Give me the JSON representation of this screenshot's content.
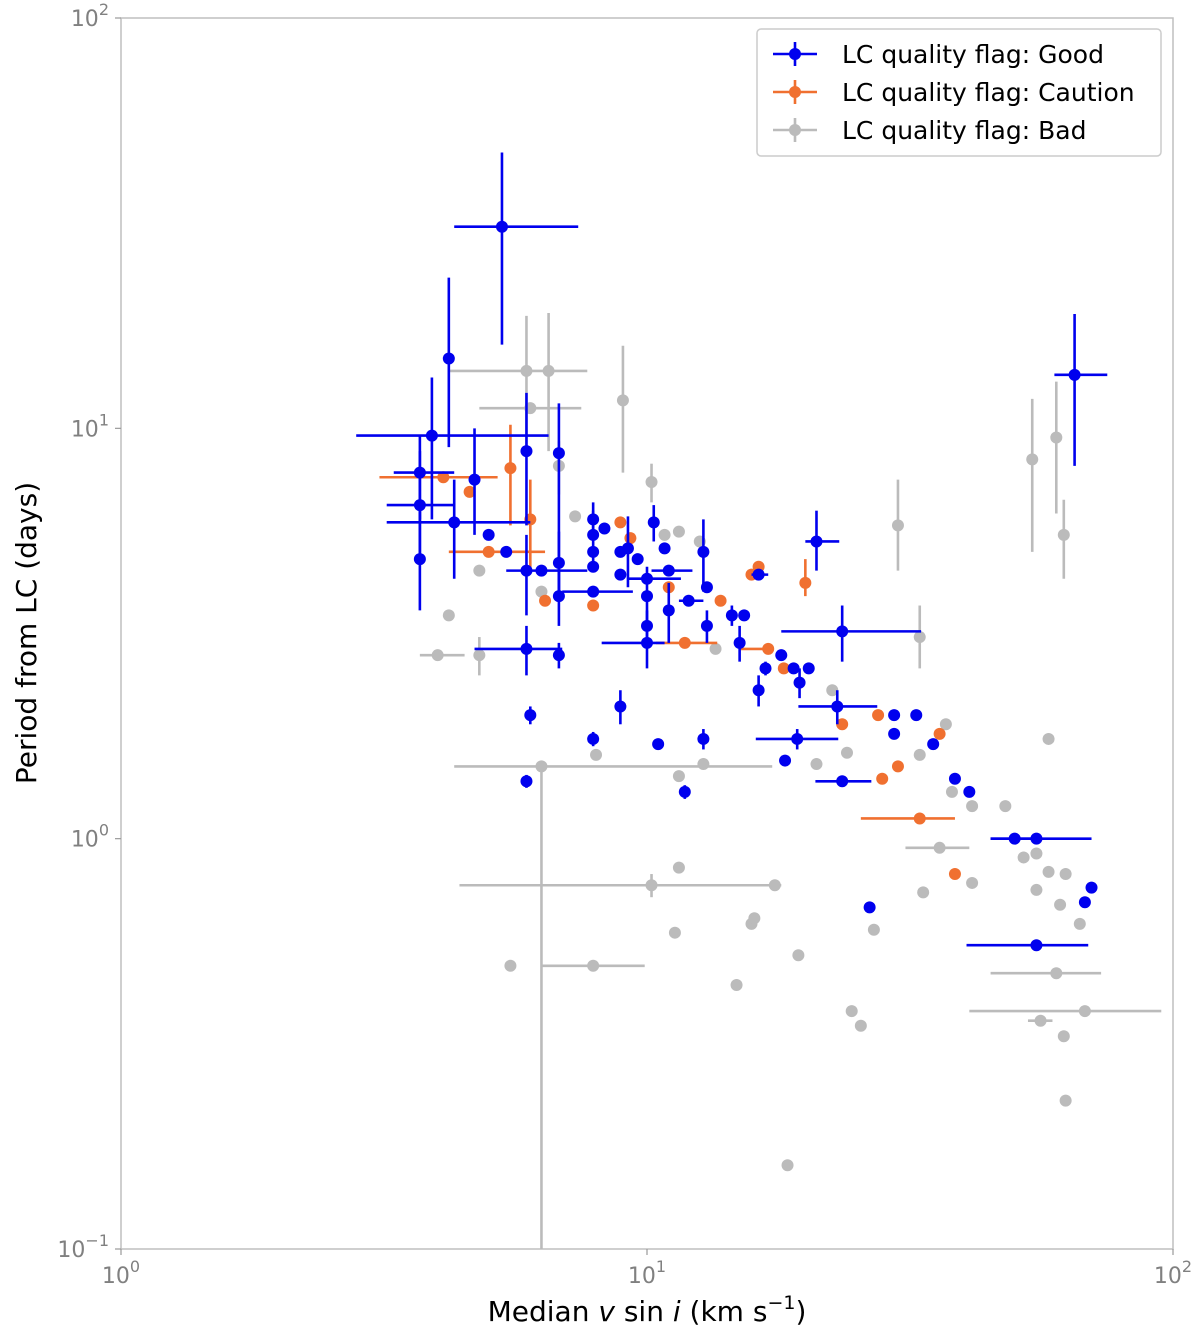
{
  "chart_data": {
    "type": "scatter",
    "xlabel": "Median v sin i (km s−1)",
    "xlabel_parts": {
      "pre": "Median ",
      "v": "v",
      "sin": " sin ",
      "i": "i",
      "unit": " (km s",
      "exp": "−1",
      "close": ")"
    },
    "ylabel": "Period from LC (days)",
    "xscale": "log",
    "yscale": "log",
    "xlim": [
      1,
      100
    ],
    "ylim": [
      0.1,
      100
    ],
    "xticks": [
      {
        "value": 1,
        "base": "10",
        "exp": "0"
      },
      {
        "value": 10,
        "base": "10",
        "exp": "1"
      },
      {
        "value": 100,
        "base": "10",
        "exp": "2"
      }
    ],
    "yticks": [
      {
        "value": 0.1,
        "base": "10",
        "exp": "−1"
      },
      {
        "value": 1,
        "base": "10",
        "exp": "0"
      },
      {
        "value": 10,
        "base": "10",
        "exp": "1"
      },
      {
        "value": 100,
        "base": "10",
        "exp": "2"
      }
    ],
    "grid": false,
    "legend_position": "top-right",
    "series": [
      {
        "name": "LC quality flag: Good",
        "color": "#0000ee",
        "points": [
          {
            "x": 5.3,
            "y": 31,
            "xerr": [
              1.0,
              2.1
            ],
            "yerr": [
              15,
              16
            ]
          },
          {
            "x": 4.2,
            "y": 14.8,
            "yerr": [
              5.8,
              8.5
            ]
          },
          {
            "x": 3.9,
            "y": 9.6,
            "xerr": [
              1.1,
              2.6
            ],
            "yerr": [
              3.6,
              3.7
            ]
          },
          {
            "x": 3.7,
            "y": 7.8,
            "xerr": [
              0.4,
              0.6
            ],
            "yerr": [
              1.8,
              1.8
            ]
          },
          {
            "x": 3.7,
            "y": 6.5,
            "xerr": [
              0.5,
              0.6
            ],
            "yerr": [
              1.7,
              2.3
            ]
          },
          {
            "x": 4.7,
            "y": 7.5,
            "yerr": [
              2.0,
              2.5
            ]
          },
          {
            "x": 4.3,
            "y": 5.9,
            "xerr": [
              1.1,
              1.7
            ],
            "yerr": [
              1.6,
              1.6
            ]
          },
          {
            "x": 3.7,
            "y": 4.8,
            "yerr": [
              1.2,
              1.6
            ]
          },
          {
            "x": 5.0,
            "y": 5.5
          },
          {
            "x": 5.4,
            "y": 5.0
          },
          {
            "x": 5.9,
            "y": 8.8,
            "yerr": [
              3.0,
              3.4
            ]
          },
          {
            "x": 6.8,
            "y": 8.7,
            "yerr": [
              4.8,
              2.8
            ]
          },
          {
            "x": 5.9,
            "y": 4.5,
            "yerr": [
              1.0,
              1.0
            ]
          },
          {
            "x": 6.3,
            "y": 4.5,
            "xerr": [
              0.9,
              1.4
            ]
          },
          {
            "x": 6.8,
            "y": 4.7,
            "yerr": [
              0.9,
              0.9
            ]
          },
          {
            "x": 6.8,
            "y": 3.9,
            "yerr": [
              0.6,
              0.7
            ]
          },
          {
            "x": 5.9,
            "y": 2.9,
            "xerr": [
              1.2,
              1.0
            ],
            "yerr": [
              0.4,
              0.4
            ]
          },
          {
            "x": 6.8,
            "y": 2.8,
            "yerr": [
              0.2,
              0.2
            ]
          },
          {
            "x": 6.0,
            "y": 2.0,
            "yerr": [
              0.1,
              0.1
            ]
          },
          {
            "x": 5.9,
            "y": 1.38,
            "yerr": [
              0.05,
              0.05
            ]
          },
          {
            "x": 7.9,
            "y": 6.0,
            "yerr": [
              0.6,
              0.6
            ]
          },
          {
            "x": 7.9,
            "y": 5.5,
            "yerr": [
              0.8,
              0.8
            ]
          },
          {
            "x": 7.9,
            "y": 5.0
          },
          {
            "x": 8.3,
            "y": 5.7
          },
          {
            "x": 8.9,
            "y": 5.0
          },
          {
            "x": 9.2,
            "y": 5.1,
            "yerr": [
              1.0,
              1.0
            ]
          },
          {
            "x": 10.3,
            "y": 5.9,
            "yerr": [
              0.6,
              0.6
            ]
          },
          {
            "x": 10.8,
            "y": 5.1
          },
          {
            "x": 7.9,
            "y": 4.6
          },
          {
            "x": 7.9,
            "y": 4.0,
            "xerr": [
              1.0,
              1.5
            ]
          },
          {
            "x": 8.9,
            "y": 4.4
          },
          {
            "x": 9.6,
            "y": 4.8
          },
          {
            "x": 10.0,
            "y": 4.3,
            "xerr": [
              0.8,
              1.6
            ]
          },
          {
            "x": 10.0,
            "y": 3.9,
            "yerr": [
              0.7,
              0.7
            ]
          },
          {
            "x": 10.0,
            "y": 3.3,
            "yerr": [
              0.3,
              0.3
            ]
          },
          {
            "x": 10.0,
            "y": 3.0,
            "xerr": [
              1.8,
              0.8
            ],
            "yerr": [
              0.4,
              0.4
            ]
          },
          {
            "x": 11.0,
            "y": 3.6,
            "yerr": [
              0.6,
              0.6
            ]
          },
          {
            "x": 11.0,
            "y": 4.5,
            "xerr": [
              0.8,
              1.2
            ]
          },
          {
            "x": 10.5,
            "y": 1.7,
            "yerr": [
              0.05,
              0.05
            ]
          },
          {
            "x": 8.9,
            "y": 2.1,
            "yerr": [
              0.2,
              0.2
            ]
          },
          {
            "x": 7.9,
            "y": 1.75,
            "yerr": [
              0.07,
              0.07
            ]
          },
          {
            "x": 11.8,
            "y": 1.3,
            "yerr": [
              0.05,
              0.05
            ]
          },
          {
            "x": 12.8,
            "y": 1.75,
            "yerr": [
              0.1,
              0.1
            ]
          },
          {
            "x": 12.8,
            "y": 5.0,
            "yerr": [
              1.0,
              1.0
            ]
          },
          {
            "x": 12.0,
            "y": 3.8,
            "xerr": [
              0.5,
              0.8
            ]
          },
          {
            "x": 13.0,
            "y": 4.1
          },
          {
            "x": 13.0,
            "y": 3.3,
            "yerr": [
              0.3,
              0.3
            ]
          },
          {
            "x": 14.5,
            "y": 3.5,
            "yerr": [
              0.2,
              0.2
            ]
          },
          {
            "x": 15.3,
            "y": 3.5
          },
          {
            "x": 15.0,
            "y": 3.0,
            "yerr": [
              0.3,
              0.3
            ]
          },
          {
            "x": 16.3,
            "y": 4.4,
            "xerr": [
              0.5,
              0.7
            ]
          },
          {
            "x": 16.8,
            "y": 2.6,
            "yerr": [
              0.1,
              0.1
            ]
          },
          {
            "x": 16.3,
            "y": 2.3,
            "yerr": [
              0.2,
              0.2
            ]
          },
          {
            "x": 18.0,
            "y": 2.8
          },
          {
            "x": 19.0,
            "y": 2.6
          },
          {
            "x": 19.5,
            "y": 2.4,
            "yerr": [
              0.2,
              0.2
            ]
          },
          {
            "x": 20.3,
            "y": 2.6
          },
          {
            "x": 21.0,
            "y": 5.3,
            "xerr": [
              1.0,
              2.2
            ],
            "yerr": [
              0.8,
              1.0
            ]
          },
          {
            "x": 23.5,
            "y": 3.2,
            "xerr": [
              5.5,
              9.7
            ],
            "yerr": [
              0.5,
              0.5
            ]
          },
          {
            "x": 23.0,
            "y": 2.1,
            "xerr": [
              3.6,
              4.4
            ],
            "yerr": [
              0.2,
              0.2
            ]
          },
          {
            "x": 19.3,
            "y": 1.75,
            "xerr": [
              3.2,
              3.8
            ],
            "yerr": [
              0.1,
              0.1
            ]
          },
          {
            "x": 18.3,
            "y": 1.55
          },
          {
            "x": 23.5,
            "y": 1.38,
            "xerr": [
              2.6,
              3.2
            ]
          },
          {
            "x": 29.5,
            "y": 2.0
          },
          {
            "x": 32.5,
            "y": 2.0
          },
          {
            "x": 29.5,
            "y": 1.8
          },
          {
            "x": 35.0,
            "y": 1.7
          },
          {
            "x": 38.5,
            "y": 1.4
          },
          {
            "x": 41.0,
            "y": 1.3
          },
          {
            "x": 50.0,
            "y": 1.0,
            "xerr": [
              5.0,
              6.0
            ]
          },
          {
            "x": 55.0,
            "y": 1.0,
            "xerr": [
              10.0,
              15.0
            ]
          },
          {
            "x": 26.5,
            "y": 0.68
          },
          {
            "x": 55.0,
            "y": 0.55,
            "xerr": [
              14.5,
              14.0
            ]
          },
          {
            "x": 65.0,
            "y": 13.5,
            "xerr": [
              5.5,
              10.0
            ],
            "yerr": [
              5.4,
              5.5
            ]
          },
          {
            "x": 68.0,
            "y": 0.7
          },
          {
            "x": 70.0,
            "y": 0.76
          }
        ]
      },
      {
        "name": "LC quality flag: Caution",
        "color": "#f07030",
        "points": [
          {
            "x": 4.1,
            "y": 7.6,
            "xerr": [
              1.0,
              1.1
            ]
          },
          {
            "x": 4.6,
            "y": 7.0
          },
          {
            "x": 5.0,
            "y": 5.0,
            "xerr": [
              0.8,
              1.4
            ]
          },
          {
            "x": 5.5,
            "y": 8.0,
            "yerr": [
              2.2,
              2.2
            ]
          },
          {
            "x": 6.0,
            "y": 6.0,
            "yerr": [
              1.5,
              1.5
            ]
          },
          {
            "x": 6.4,
            "y": 3.8
          },
          {
            "x": 7.9,
            "y": 3.7
          },
          {
            "x": 8.9,
            "y": 5.9
          },
          {
            "x": 9.3,
            "y": 5.4
          },
          {
            "x": 11.0,
            "y": 4.1
          },
          {
            "x": 11.8,
            "y": 3.0,
            "xerr": [
              1.4,
              1.8
            ]
          },
          {
            "x": 13.8,
            "y": 3.8
          },
          {
            "x": 15.8,
            "y": 4.4
          },
          {
            "x": 16.3,
            "y": 4.6
          },
          {
            "x": 17.0,
            "y": 2.9,
            "xerr": [
              2.0,
              0.0
            ]
          },
          {
            "x": 18.2,
            "y": 2.6
          },
          {
            "x": 20.0,
            "y": 4.2,
            "yerr": [
              0.3,
              0.6
            ]
          },
          {
            "x": 23.5,
            "y": 1.9
          },
          {
            "x": 27.5,
            "y": 2.0
          },
          {
            "x": 28.0,
            "y": 1.4
          },
          {
            "x": 30.0,
            "y": 1.5
          },
          {
            "x": 33.0,
            "y": 1.12,
            "xerr": [
              7.5,
              5.5
            ]
          },
          {
            "x": 36.0,
            "y": 1.8
          },
          {
            "x": 38.5,
            "y": 0.82
          }
        ]
      },
      {
        "name": "LC quality flag: Bad",
        "color": "#bbbbbb",
        "points": [
          {
            "x": 5.9,
            "y": 13.8,
            "xerr": [
              1.7,
              1.8
            ],
            "yerr": [
              5.2,
              5.0
            ]
          },
          {
            "x": 6.5,
            "y": 13.8,
            "yerr": [
              5.0,
              5.3
            ]
          },
          {
            "x": 6.0,
            "y": 11.2,
            "xerr": [
              1.2,
              1.5
            ]
          },
          {
            "x": 6.8,
            "y": 8.1,
            "yerr": [
              1.2,
              1.2
            ]
          },
          {
            "x": 9.0,
            "y": 11.7,
            "yerr": [
              3.9,
              4.2
            ]
          },
          {
            "x": 10.2,
            "y": 7.4,
            "yerr": [
              0.8,
              0.8
            ]
          },
          {
            "x": 7.3,
            "y": 6.1
          },
          {
            "x": 10.8,
            "y": 5.5
          },
          {
            "x": 11.5,
            "y": 5.6
          },
          {
            "x": 12.6,
            "y": 5.3
          },
          {
            "x": 4.2,
            "y": 3.5
          },
          {
            "x": 4.0,
            "y": 2.8,
            "xerr": [
              0.3,
              0.5
            ]
          },
          {
            "x": 4.8,
            "y": 2.8,
            "yerr": [
              0.3,
              0.3
            ]
          },
          {
            "x": 4.8,
            "y": 4.5
          },
          {
            "x": 6.3,
            "y": 4.0
          },
          {
            "x": 6.3,
            "y": 1.5,
            "xerr": [
              2.0,
              11.0
            ],
            "yerr": [
              1.4,
              0.0
            ]
          },
          {
            "x": 8.0,
            "y": 1.6
          },
          {
            "x": 10.2,
            "y": 0.77,
            "xerr": [
              5.8,
              7.8
            ],
            "yerr": [
              0.05,
              0.05
            ]
          },
          {
            "x": 11.5,
            "y": 1.42
          },
          {
            "x": 12.8,
            "y": 1.52
          },
          {
            "x": 11.5,
            "y": 0.85
          },
          {
            "x": 13.5,
            "y": 2.9
          },
          {
            "x": 15.8,
            "y": 0.62
          },
          {
            "x": 16.0,
            "y": 0.64
          },
          {
            "x": 17.5,
            "y": 0.77
          },
          {
            "x": 11.3,
            "y": 0.59
          },
          {
            "x": 14.8,
            "y": 0.44
          },
          {
            "x": 19.4,
            "y": 0.52
          },
          {
            "x": 21.0,
            "y": 1.52
          },
          {
            "x": 24.0,
            "y": 1.62
          },
          {
            "x": 22.5,
            "y": 2.3
          },
          {
            "x": 24.5,
            "y": 0.38
          },
          {
            "x": 25.5,
            "y": 0.35
          },
          {
            "x": 27.0,
            "y": 0.6
          },
          {
            "x": 30.0,
            "y": 5.8,
            "yerr": [
              1.3,
              1.7
            ]
          },
          {
            "x": 33.0,
            "y": 3.1,
            "yerr": [
              0.5,
              0.6
            ]
          },
          {
            "x": 33.0,
            "y": 1.6
          },
          {
            "x": 36.0,
            "y": 0.95,
            "xerr": [
              5.0,
              5.0
            ]
          },
          {
            "x": 37.0,
            "y": 1.9
          },
          {
            "x": 38.0,
            "y": 1.3
          },
          {
            "x": 33.5,
            "y": 0.74
          },
          {
            "x": 41.5,
            "y": 1.2
          },
          {
            "x": 41.5,
            "y": 0.78
          },
          {
            "x": 48.0,
            "y": 1.2
          },
          {
            "x": 52.0,
            "y": 0.9
          },
          {
            "x": 55.0,
            "y": 0.75
          },
          {
            "x": 58.0,
            "y": 1.75
          },
          {
            "x": 55.0,
            "y": 0.92
          },
          {
            "x": 58.0,
            "y": 0.83
          },
          {
            "x": 61.0,
            "y": 0.69
          },
          {
            "x": 62.5,
            "y": 0.82
          },
          {
            "x": 66.5,
            "y": 0.62
          },
          {
            "x": 54.0,
            "y": 8.4,
            "yerr": [
              3.4,
              3.4
            ]
          },
          {
            "x": 60.0,
            "y": 9.5,
            "yerr": [
              3.3,
              3.5
            ]
          },
          {
            "x": 62.0,
            "y": 5.5,
            "yerr": [
              1.2,
              1.2
            ]
          },
          {
            "x": 60.0,
            "y": 0.47,
            "xerr": [
              15.0,
              13.0
            ]
          },
          {
            "x": 68.0,
            "y": 0.38,
            "xerr": [
              27.0,
              27.0
            ]
          },
          {
            "x": 56.0,
            "y": 0.36,
            "xerr": [
              3.0,
              3.0
            ]
          },
          {
            "x": 62.0,
            "y": 0.33
          },
          {
            "x": 62.5,
            "y": 0.23
          },
          {
            "x": 5.5,
            "y": 0.49
          },
          {
            "x": 7.9,
            "y": 0.49,
            "xerr": [
              1.6,
              2.0
            ]
          },
          {
            "x": 18.5,
            "y": 0.16
          }
        ]
      }
    ]
  }
}
